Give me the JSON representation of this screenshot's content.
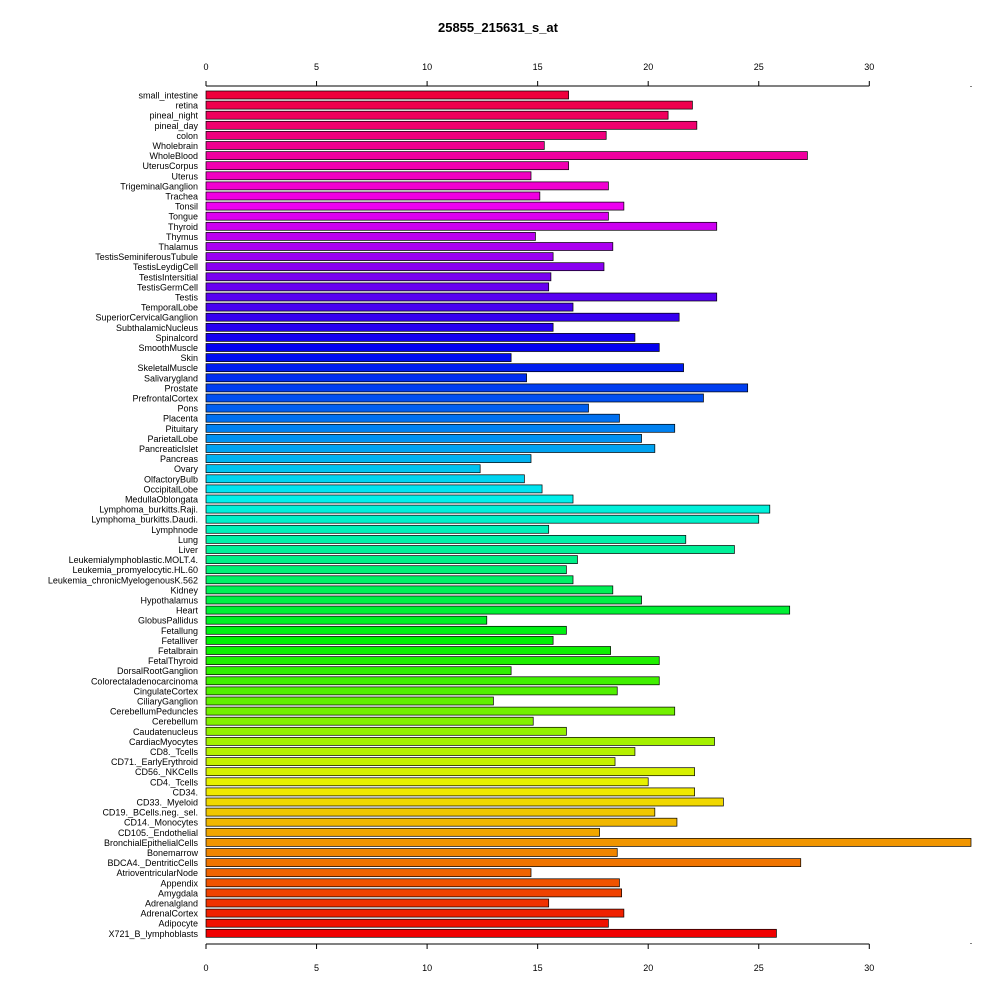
{
  "chart_data": {
    "type": "bar",
    "orientation": "horizontal",
    "title": "25855_215631_s_at",
    "xlim": [
      0,
      34.6
    ],
    "x_ticks": [
      0,
      5,
      10,
      15,
      20,
      25,
      30
    ],
    "x_tick_labels": [
      "0",
      "5",
      "10",
      "15",
      "20",
      "25",
      "30"
    ],
    "grid": false,
    "legend": "none",
    "categories": [
      "small_intestine",
      "retina",
      "pineal_night",
      "pineal_day",
      "colon",
      "Wholebrain",
      "WholeBlood",
      "UterusCorpus",
      "Uterus",
      "TrigeminalGanglion",
      "Trachea",
      "Tonsil",
      "Tongue",
      "Thyroid",
      "Thymus",
      "Thalamus",
      "TestisSeminiferousTubule",
      "TestisLeydigCell",
      "TestisIntersitial",
      "TestisGermCell",
      "Testis",
      "TemporalLobe",
      "SuperiorCervicalGanglion",
      "SubthalamicNucleus",
      "Spinalcord",
      "SmoothMuscle",
      "Skin",
      "SkeletalMuscle",
      "Salivarygland",
      "Prostate",
      "PrefrontalCortex",
      "Pons",
      "Placenta",
      "Pituitary",
      "ParietalLobe",
      "PancreaticIslet",
      "Pancreas",
      "Ovary",
      "OlfactoryBulb",
      "OccipitalLobe",
      "MedullaOblongata",
      "Lymphoma_burkitts.Raji.",
      "Lymphoma_burkitts.Daudi.",
      "Lymphnode",
      "Lung",
      "Liver",
      "Leukemialymphoblastic.MOLT.4.",
      "Leukemia_promyelocytic.HL.60",
      "Leukemia_chronicMyelogenousK.562",
      "Kidney",
      "Hypothalamus",
      "Heart",
      "GlobusPallidus",
      "Fetallung",
      "Fetalliver",
      "Fetalbrain",
      "FetalThyroid",
      "DorsalRootGanglion",
      "Colorectaladenocarcinoma",
      "CingulateCortex",
      "CiliaryGanglion",
      "CerebellumPeduncles",
      "Cerebellum",
      "Caudatenucleus",
      "CardiacMyocytes",
      "CD8._Tcells",
      "CD71._EarlyErythroid",
      "CD56._NKCells",
      "CD4._Tcells",
      "CD34.",
      "CD33._Myeloid",
      "CD19._BCells.neg._sel.",
      "CD14._Monocytes",
      "CD105._Endothelial",
      "BronchialEpithelialCells",
      "Bonemarrow",
      "BDCA4._DentriticCells",
      "AtrioventricularNode",
      "Appendix",
      "Amygdala",
      "Adrenalgland",
      "AdrenalCortex",
      "Adipocyte",
      "X721_B_lymphoblasts"
    ],
    "values": [
      16.4,
      22.0,
      20.9,
      22.2,
      18.1,
      15.3,
      27.2,
      16.4,
      14.7,
      18.2,
      15.1,
      18.9,
      18.2,
      23.1,
      14.9,
      18.4,
      15.7,
      18.0,
      15.6,
      15.5,
      23.1,
      16.6,
      21.4,
      15.7,
      19.4,
      20.5,
      13.8,
      21.6,
      14.5,
      24.5,
      22.5,
      17.3,
      18.7,
      21.2,
      19.7,
      20.3,
      14.7,
      12.4,
      14.4,
      15.2,
      16.6,
      25.5,
      25.0,
      15.5,
      21.7,
      23.9,
      16.8,
      16.3,
      16.6,
      18.4,
      19.7,
      26.4,
      12.7,
      16.3,
      15.7,
      18.3,
      20.5,
      13.8,
      20.5,
      18.6,
      13.0,
      21.2,
      14.8,
      16.3,
      23.0,
      19.4,
      18.5,
      22.1,
      20.0,
      22.1,
      23.4,
      20.3,
      21.3,
      17.8,
      34.6,
      18.6,
      26.9,
      14.7,
      18.7,
      18.8,
      15.5,
      18.9,
      18.2,
      25.8
    ],
    "bar_colors": "rainbow gradient from crimson (bottom) through orange, yellow, green, cyan, blue, violet to magenta-red (top)"
  }
}
